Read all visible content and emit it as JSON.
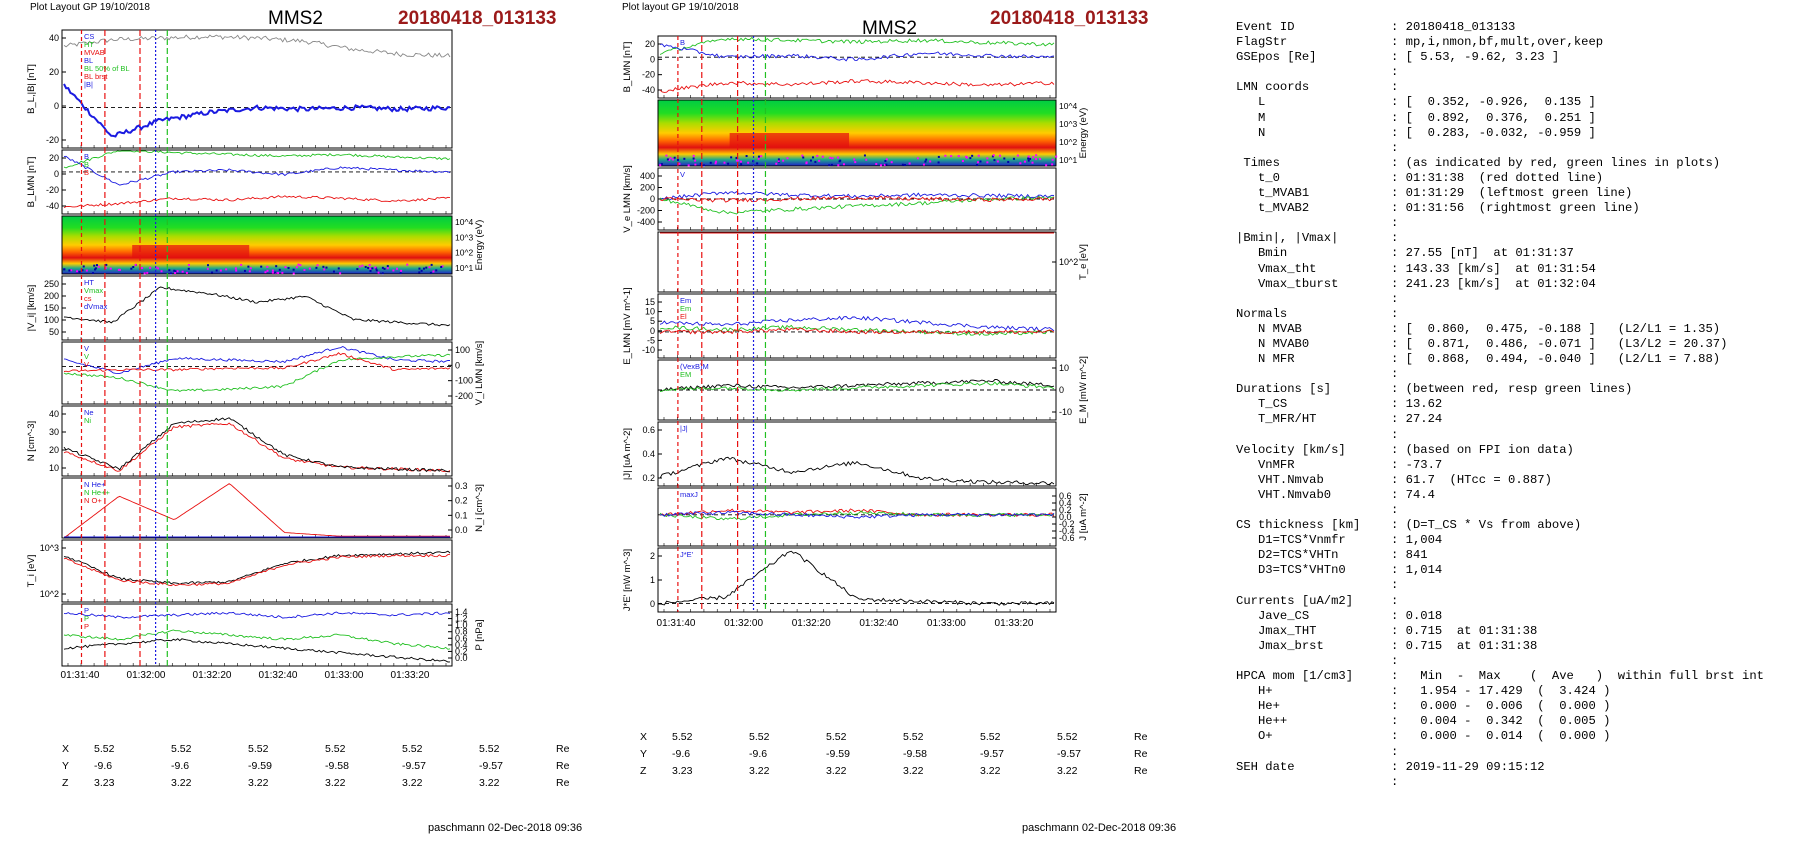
{
  "header": {
    "left_title": "Plot Layout GP 19/10/2018",
    "mid_title": "Plot layout GP 19/10/2018",
    "spacecraft": "MMS2",
    "event": "20180418_013133"
  },
  "footer": {
    "author": "paschmann 02-Dec-2018 09:36"
  },
  "coords": {
    "times": [
      "01:31:40",
      "01:32:00",
      "01:32:20",
      "01:32:40",
      "01:33:00",
      "01:33:20"
    ],
    "rows": [
      {
        "label": "X",
        "values": [
          "5.52",
          "5.52",
          "5.52",
          "5.52",
          "5.52",
          "5.52"
        ],
        "unit": "Re"
      },
      {
        "label": "Y",
        "values": [
          "-9.6",
          "-9.6",
          "-9.59",
          "-9.58",
          "-9.57",
          "-9.57"
        ],
        "unit": "Re"
      },
      {
        "label": "Z",
        "values": [
          "3.23",
          "3.22",
          "3.22",
          "3.22",
          "3.22",
          "3.22"
        ],
        "unit": "Re"
      }
    ]
  },
  "colors": {
    "red": "#e81010",
    "green": "#22c022",
    "blue": "#1a1ae0",
    "black": "#000000",
    "gray": "#888888",
    "event": "#9b1a1a"
  },
  "chart_data": [
    {
      "type": "line",
      "panel": "B_L |B|",
      "ylabel": "B_L,|B| [nT]",
      "yticks": [
        "40",
        "20",
        "0",
        "-20"
      ],
      "ylim": [
        -25,
        48
      ],
      "legend": [
        "CS",
        "HT",
        "MVAB",
        "BL",
        "BL 50% of BL",
        "BL brst",
        "|B|"
      ],
      "series": [
        {
          "name": "|B|",
          "color": "gray",
          "values": [
            38,
            42,
            43,
            44,
            43,
            41,
            36,
            33,
            32
          ]
        },
        {
          "name": "BL",
          "color": "blue",
          "values": [
            14,
            -18,
            -8,
            -3,
            0,
            -1,
            0,
            -1,
            0
          ]
        }
      ]
    },
    {
      "type": "line",
      "panel": "B_LMN",
      "ylabel": "B_LMN [nT]",
      "yticks": [
        "20",
        "0",
        "-20",
        "-40"
      ],
      "ylim": [
        -48,
        25
      ],
      "legend": [
        "B",
        "B",
        "B"
      ],
      "series": [
        {
          "name": "",
          "color": "green",
          "values": [
            5,
            25,
            22,
            20,
            18,
            20,
            17,
            15
          ]
        },
        {
          "name": "",
          "color": "blue",
          "values": [
            18,
            -15,
            0,
            2,
            -3,
            5,
            2,
            0
          ]
        },
        {
          "name": "",
          "color": "red",
          "values": [
            -40,
            -36,
            -30,
            -32,
            -28,
            -30,
            -33,
            -30
          ]
        }
      ]
    },
    {
      "type": "heatmap",
      "panel": "ion energy spectrogram",
      "ylabel": "Energy (eV)",
      "yticks": [
        "10^4",
        "10^3",
        "10^2",
        "10^1"
      ]
    },
    {
      "type": "line",
      "panel": "|Vi|",
      "ylabel": "|V_i| [km/s]",
      "yticks": [
        "250",
        "200",
        "150",
        "100",
        "50"
      ],
      "ylim": [
        30,
        250
      ],
      "legend": [
        "HT",
        "Vmax",
        "cs",
        "dVmax"
      ],
      "series": [
        {
          "name": "",
          "color": "black",
          "values": [
            110,
            90,
            210,
            190,
            160,
            180,
            100,
            90,
            80
          ]
        }
      ]
    },
    {
      "type": "line",
      "panel": "Vi LMN",
      "ylabel": "V_i LMN [km/s]",
      "yticks": [
        "100",
        "0",
        "-100",
        "-200"
      ],
      "ylim": [
        -230,
        150
      ],
      "legend": [
        "V",
        "V",
        "V"
      ],
      "series": [
        {
          "name": "",
          "color": "blue",
          "values": [
            40,
            -40,
            50,
            40,
            30,
            120,
            40,
            30
          ]
        },
        {
          "name": "",
          "color": "green",
          "values": [
            -40,
            -70,
            -150,
            -140,
            -120,
            40,
            60,
            70
          ]
        },
        {
          "name": "",
          "color": "red",
          "values": [
            -30,
            -20,
            -20,
            -10,
            -10,
            80,
            -20,
            -10
          ]
        }
      ]
    },
    {
      "type": "line",
      "panel": "N",
      "ylabel": "N [cm^-3]",
      "yticks": [
        "40",
        "30",
        "20",
        "10"
      ],
      "ylim": [
        0,
        40
      ],
      "legend": [
        "Ne",
        "Ni"
      ],
      "series": [
        {
          "name": "Ne",
          "color": "red",
          "values": [
            14,
            3,
            28,
            30,
            10,
            5,
            4,
            3
          ]
        },
        {
          "name": "Ni",
          "color": "black",
          "values": [
            16,
            4,
            30,
            33,
            12,
            5,
            4,
            3
          ]
        }
      ]
    },
    {
      "type": "line",
      "panel": "HPCA N",
      "ylabel": "N_i [cm^-3]",
      "yticks": [
        "0.3",
        "0.2",
        "0.1",
        "0.0"
      ],
      "ylim": [
        0,
        0.33
      ],
      "legend": [
        "N He+",
        "N He++",
        "N O+"
      ],
      "series": [
        {
          "name": "N He++",
          "color": "red",
          "values": [
            0,
            0.23,
            0.1,
            0.3,
            0.03,
            0.01,
            0.01,
            0.01
          ]
        },
        {
          "name": "N O+",
          "color": "blue",
          "values": [
            0,
            0.005,
            0.005,
            0.005,
            0.005,
            0.005,
            0.005,
            0.005
          ]
        }
      ]
    },
    {
      "type": "line",
      "panel": "Ti",
      "ylabel": "T_i [eV]",
      "yticks": [
        "10^3",
        "10^2"
      ],
      "series": [
        {
          "name": "",
          "color": "black",
          "values": [
            3,
            1.5,
            1.2,
            1.3,
            2.5,
            3,
            3.1,
            3.2
          ]
        },
        {
          "name": "",
          "color": "red",
          "values": [
            2.8,
            1.4,
            1.1,
            1.2,
            2.4,
            2.9,
            3,
            3
          ]
        }
      ]
    },
    {
      "type": "line",
      "panel": "P",
      "ylabel": "P [nPa]",
      "yticks": [
        "1.4",
        "1.2",
        "1.0",
        "0.8",
        "0.6",
        "0.4",
        "0.2",
        "0.0"
      ],
      "ylim": [
        0,
        1.4
      ],
      "legend": [
        "P",
        "P",
        "P"
      ],
      "series": [
        {
          "name": "",
          "color": "blue",
          "values": [
            1.2,
            1.1,
            1.15,
            1.2,
            1.1,
            1.2,
            1.15,
            1.2
          ]
        },
        {
          "name": "",
          "color": "green",
          "values": [
            0.7,
            0.6,
            0.8,
            0.7,
            0.6,
            0.7,
            0.5,
            0.4
          ]
        },
        {
          "name": "",
          "color": "black",
          "values": [
            0.4,
            0.5,
            0.6,
            0.5,
            0.4,
            0.3,
            0.2,
            0.1
          ]
        }
      ]
    },
    {
      "type": "line",
      "panel": "B_LMN right",
      "ylabel": "B_LMN [nT]",
      "yticks": [
        "20",
        "0",
        "-20",
        "-40"
      ],
      "ylim": [
        -48,
        25
      ],
      "legend": [
        "B"
      ],
      "series": [
        {
          "name": "",
          "color": "green",
          "values": [
            5,
            22,
            20,
            18,
            20,
            17,
            15
          ]
        },
        {
          "name": "",
          "color": "blue",
          "values": [
            15,
            0,
            2,
            -3,
            5,
            2,
            0
          ]
        },
        {
          "name": "",
          "color": "red",
          "values": [
            -40,
            -30,
            -32,
            -28,
            -30,
            -33,
            -30
          ]
        }
      ]
    },
    {
      "type": "heatmap",
      "panel": "electron energy spectrogram",
      "ylabel": "Energy (eV)",
      "yticks": [
        "10^4",
        "10^3",
        "10^2",
        "10^1"
      ]
    },
    {
      "type": "line",
      "panel": "Ve LMN",
      "ylabel": "V_e LMN [km/s]",
      "yticks": [
        "400",
        "200",
        "0",
        "-200",
        "-400"
      ],
      "ylim": [
        -450,
        450
      ],
      "legend": [
        "V"
      ],
      "series": [
        {
          "name": "",
          "color": "blue",
          "values": [
            0,
            100,
            60,
            40,
            60,
            50,
            40
          ]
        },
        {
          "name": "",
          "color": "green",
          "values": [
            0,
            -200,
            -150,
            -100,
            -60,
            0,
            20
          ]
        },
        {
          "name": "",
          "color": "red",
          "values": [
            0,
            -20,
            0,
            20,
            0,
            -10,
            0
          ]
        }
      ]
    },
    {
      "type": "line",
      "panel": "Te",
      "ylabel": "T_e [eV]",
      "yticks": [
        "10^2"
      ],
      "series": [
        {
          "name": "",
          "color": "black",
          "values": [
            80,
            95,
            30,
            25,
            40,
            80,
            90,
            100
          ]
        },
        {
          "name": "",
          "color": "red",
          "values": [
            82,
            97,
            32,
            27,
            42,
            82,
            92,
            102
          ]
        }
      ]
    },
    {
      "type": "line",
      "panel": "E LMN",
      "ylabel": "E_LMN [mV m^-1]",
      "yticks": [
        "15",
        "10",
        "5",
        "0",
        "-5",
        "-10"
      ],
      "ylim": [
        -11,
        16
      ],
      "legend": [
        "Em",
        "Em",
        "El"
      ],
      "series": [
        {
          "name": "",
          "color": "blue",
          "values": [
            4,
            3,
            5,
            6,
            4,
            2,
            1
          ]
        },
        {
          "name": "",
          "color": "green",
          "values": [
            2,
            1,
            2,
            1,
            0,
            -1,
            0
          ]
        },
        {
          "name": "",
          "color": "red",
          "values": [
            0,
            0,
            1,
            0,
            0,
            0,
            0
          ]
        }
      ]
    },
    {
      "type": "line",
      "panel": "EM",
      "ylabel": "E_M [mW m^-2]",
      "yticks": [
        "10",
        "0",
        "-10"
      ],
      "ylim": [
        -13,
        13
      ],
      "legend": [
        "(VexB)M",
        "EM"
      ],
      "series": [
        {
          "name": "",
          "color": "black",
          "values": [
            0,
            2,
            1,
            2,
            3,
            4,
            2
          ]
        },
        {
          "name": "",
          "color": "green",
          "values": [
            0,
            1,
            0,
            1,
            2,
            3,
            1
          ]
        }
      ]
    },
    {
      "type": "line",
      "panel": "|J|",
      "ylabel": "|J| [uA m^-2]",
      "yticks": [
        "0.6",
        "0.4",
        "0.2"
      ],
      "ylim": [
        0,
        0.68
      ],
      "legend": [
        "|J|"
      ],
      "series": [
        {
          "name": "|J|",
          "color": "black",
          "values": [
            0.1,
            0.3,
            0.15,
            0.25,
            0.08,
            0.04,
            0.03
          ]
        }
      ]
    },
    {
      "type": "line",
      "panel": "J",
      "ylabel": "J [uA m^-2]",
      "yticks": [
        "0.6",
        "0.4",
        "0.2",
        "0.0",
        "-0.2",
        "-0.4",
        "-0.6"
      ],
      "ylim": [
        -0.7,
        0.6
      ],
      "legend": [
        "maxJ"
      ],
      "series": [
        {
          "name": "",
          "color": "red",
          "values": [
            0,
            0.1,
            0.05,
            0.1,
            0,
            0,
            0
          ]
        },
        {
          "name": "",
          "color": "green",
          "values": [
            0,
            -0.1,
            0,
            0.05,
            0,
            0,
            0
          ]
        },
        {
          "name": "",
          "color": "blue",
          "values": [
            0,
            0.05,
            0,
            -0.05,
            0,
            0,
            0
          ]
        }
      ]
    },
    {
      "type": "line",
      "panel": "J*E'",
      "ylabel": "J*E' [nW m^-3]",
      "yticks": [
        "2",
        "1",
        "0"
      ],
      "ylim": [
        -0.4,
        2.6
      ],
      "legend": [
        "J*E'"
      ],
      "series": [
        {
          "name": "",
          "color": "black",
          "values": [
            0,
            0.3,
            2.5,
            0.2,
            0.1,
            0,
            0
          ]
        }
      ]
    }
  ],
  "info": [
    {
      "k": "Event ID",
      "v": "20180418_013133"
    },
    {
      "k": "FlagStr",
      "v": "mp,i,nmon,bf,mult,over,keep"
    },
    {
      "k": "GSEpos [Re]",
      "v": "[ 5.53, -9.62, 3.23 ]"
    },
    {
      "k": "",
      "v": ""
    },
    {
      "k": "LMN coords",
      "v": ""
    },
    {
      "k": "   L",
      "v": "[  0.352, -0.926,  0.135 ]"
    },
    {
      "k": "   M",
      "v": "[  0.892,  0.376,  0.251 ]"
    },
    {
      "k": "   N",
      "v": "[  0.283, -0.032, -0.959 ]"
    },
    {
      "k": "",
      "v": ""
    },
    {
      "k": " Times",
      "v": "(as indicated by red, green lines in plots)"
    },
    {
      "k": "   t_0",
      "v": "01:31:38  (red dotted line)"
    },
    {
      "k": "   t_MVAB1",
      "v": "01:31:29  (leftmost green line)"
    },
    {
      "k": "   t_MVAB2",
      "v": "01:31:56  (rightmost green line)"
    },
    {
      "k": "",
      "v": ""
    },
    {
      "k": "|Bmin|, |Vmax|",
      "v": ""
    },
    {
      "k": "   Bmin",
      "v": "27.55 [nT]  at 01:31:37"
    },
    {
      "k": "   Vmax_tht",
      "v": "143.33 [km/s]  at 01:31:54"
    },
    {
      "k": "   Vmax_tburst",
      "v": "241.23 [km/s]  at 01:32:04"
    },
    {
      "k": "",
      "v": ""
    },
    {
      "k": "Normals",
      "v": ""
    },
    {
      "k": "   N MVAB",
      "v": "[  0.860,  0.475, -0.188 ]   (L2/L1 = 1.35)"
    },
    {
      "k": "   N MVAB0",
      "v": "[  0.871,  0.486, -0.071 ]   (L3/L2 = 20.37)"
    },
    {
      "k": "   N MFR",
      "v": "[  0.868,  0.494, -0.040 ]   (L2/L1 = 7.88)"
    },
    {
      "k": "",
      "v": ""
    },
    {
      "k": "Durations [s]",
      "v": "(between red, resp green lines)"
    },
    {
      "k": "   T_CS",
      "v": "13.62"
    },
    {
      "k": "   T_MFR/HT",
      "v": "27.24"
    },
    {
      "k": "",
      "v": ""
    },
    {
      "k": "Velocity [km/s]",
      "v": "(based on FPI ion data)"
    },
    {
      "k": "   VnMFR",
      "v": "-73.7"
    },
    {
      "k": "   VHT.Nmvab",
      "v": "61.7  (HTcc = 0.887)"
    },
    {
      "k": "   VHT.Nmvab0",
      "v": "74.4"
    },
    {
      "k": "",
      "v": ""
    },
    {
      "k": "CS thickness [km]",
      "v": "(D=T_CS * Vs from above)"
    },
    {
      "k": "   D1=TCS*Vnmfr",
      "v": "1,004"
    },
    {
      "k": "   D2=TCS*VHTn",
      "v": "841"
    },
    {
      "k": "   D3=TCS*VHTn0",
      "v": "1,014"
    },
    {
      "k": "",
      "v": ""
    },
    {
      "k": "Currents [uA/m2]",
      "v": ""
    },
    {
      "k": "   Jave_CS",
      "v": "0.018"
    },
    {
      "k": "   Jmax_THT",
      "v": "0.715  at 01:31:38"
    },
    {
      "k": "   Jmax_brst",
      "v": "0.715  at 01:31:38"
    },
    {
      "k": "",
      "v": ""
    },
    {
      "k": "HPCA mom [1/cm3]",
      "v": "  Min  -  Max    (  Ave   )  within full brst int"
    },
    {
      "k": "   H+",
      "v": "  1.954 - 17.429  (  3.424 )"
    },
    {
      "k": "   He+",
      "v": "  0.000 -  0.006  (  0.000 )"
    },
    {
      "k": "   He++",
      "v": "  0.004 -  0.342  (  0.005 )"
    },
    {
      "k": "   O+",
      "v": "  0.000 -  0.014  (  0.000 )"
    },
    {
      "k": "",
      "v": ""
    },
    {
      "k": "SEH date",
      "v": "2019-11-29 09:15:12"
    },
    {
      "k": "",
      "v": ""
    }
  ]
}
